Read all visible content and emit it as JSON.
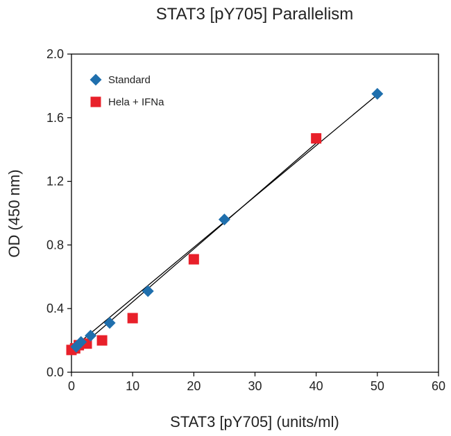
{
  "chart_data": {
    "type": "scatter",
    "title": "STAT3 [pY705] Parallelism",
    "xlabel": "STAT3 [pY705] (units/ml)",
    "ylabel": "OD (450 nm)",
    "xlim": [
      0,
      60
    ],
    "ylim": [
      0,
      2.0
    ],
    "xticks": [
      0,
      10,
      20,
      30,
      40,
      50,
      60
    ],
    "yticks": [
      0.0,
      0.4,
      0.8,
      1.2,
      1.6,
      2.0
    ],
    "xtick_labels": [
      "0",
      "10",
      "20",
      "30",
      "40",
      "50",
      "60"
    ],
    "ytick_labels": [
      "0.0",
      "0.4",
      "0.8",
      "1.2",
      "1.6",
      "2.0"
    ],
    "grid": false,
    "legend_position": "top-left",
    "series": [
      {
        "name": "Standard",
        "marker": "diamond",
        "color": "#1f6fad",
        "x": [
          0.78,
          1.56,
          3.13,
          6.25,
          12.5,
          25,
          50
        ],
        "y": [
          0.16,
          0.19,
          0.23,
          0.31,
          0.51,
          0.96,
          1.75
        ],
        "fit": {
          "x": [
            0,
            50
          ],
          "y": [
            0.145,
            1.745
          ]
        }
      },
      {
        "name": "Hela + IFNa",
        "marker": "square",
        "color": "#e8202a",
        "x": [
          0,
          0.6,
          1.2,
          2.5,
          5,
          10,
          20,
          40
        ],
        "y": [
          0.14,
          0.15,
          0.17,
          0.18,
          0.2,
          0.34,
          0.71,
          1.47
        ],
        "fit": {
          "x": [
            0,
            40
          ],
          "y": [
            0.11,
            1.44
          ]
        }
      }
    ]
  }
}
